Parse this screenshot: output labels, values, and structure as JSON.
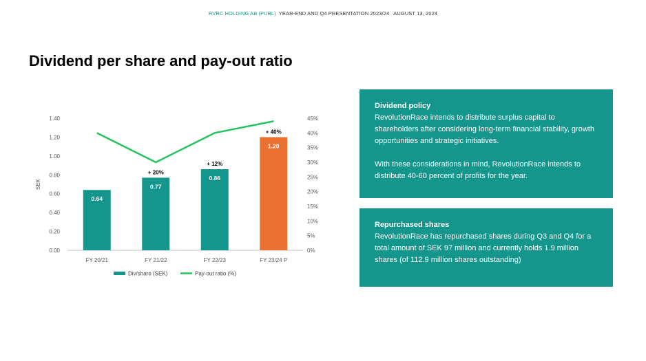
{
  "header": {
    "company": "RVRC HOLDING AB (PUBL)",
    "presentation": "YEAR-END AND Q4 PRESENTATION 2023/24",
    "date": "AUGUST 13, 2024"
  },
  "page_title": "Dividend per share and pay-out ratio",
  "colors": {
    "teal": "#14968d",
    "orange": "#e97132",
    "green_line": "#22c55e"
  },
  "chart_data": {
    "type": "bar",
    "categories": [
      "FY 20/21",
      "FY 21/22",
      "FY 22/23",
      "FY 23/24 P"
    ],
    "series": [
      {
        "name": "Div/share (SEK)",
        "type": "bar",
        "axis": "left",
        "values": [
          0.64,
          0.77,
          0.86,
          1.2
        ],
        "data_labels": [
          "0.64",
          "0.77",
          "0.86",
          "1.20"
        ],
        "colors": [
          "#14968d",
          "#14968d",
          "#14968d",
          "#e97132"
        ]
      },
      {
        "name": "Pay-out ratio (%)",
        "type": "line",
        "axis": "right",
        "values": [
          40,
          30,
          40,
          44
        ]
      }
    ],
    "growth_labels": [
      "",
      "+ 20%",
      "+ 12%",
      "+ 40%"
    ],
    "ylabel": "SEK",
    "ylim": [
      0,
      1.4
    ],
    "yticks": [
      "0.00",
      "0.20",
      "0.40",
      "0.60",
      "0.80",
      "1.00",
      "1.20",
      "1.40"
    ],
    "y2lim": [
      0,
      45
    ],
    "y2ticks": [
      "0%",
      "5%",
      "10%",
      "15%",
      "20%",
      "25%",
      "30%",
      "35%",
      "40%",
      "45%"
    ],
    "grid": false,
    "legend": "bottom"
  },
  "dividend_policy": {
    "title": "Dividend policy",
    "text1": "RevolutionRace intends to distribute surplus capital to shareholders after considering long-term financial stability, growth opportunities and strategic initiatives.",
    "text2": "With these considerations in mind, RevolutionRace intends to distribute 40-60 percent of profits for the year."
  },
  "repurchased_shares": {
    "title": "Repurchased shares",
    "text": "RevolutionRace has repurchased shares during Q3 and Q4 for a total amount of SEK 97 million and currently holds 1.9 million shares (of 112.9  million shares outstanding)"
  }
}
